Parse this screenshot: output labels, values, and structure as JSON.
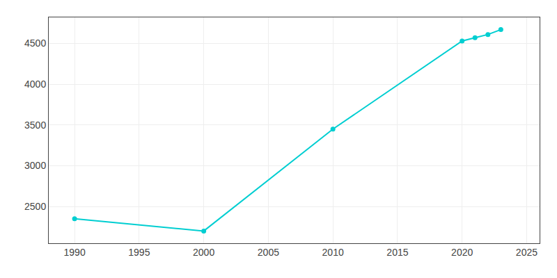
{
  "chart_data": {
    "type": "line",
    "x": [
      1990,
      2000,
      2010,
      2020,
      2021,
      2022,
      2023
    ],
    "values": [
      2350,
      2200,
      3450,
      4530,
      4570,
      4610,
      4670
    ],
    "color": "#00CED1",
    "marker": "circle",
    "xlim": [
      1988,
      2026
    ],
    "xticks": [
      1990,
      1995,
      2000,
      2005,
      2010,
      2015,
      2020,
      2025
    ],
    "ylim": [
      2050,
      4820
    ],
    "yticks": [
      2500,
      3000,
      3500,
      4000,
      4500
    ],
    "grid": true
  }
}
